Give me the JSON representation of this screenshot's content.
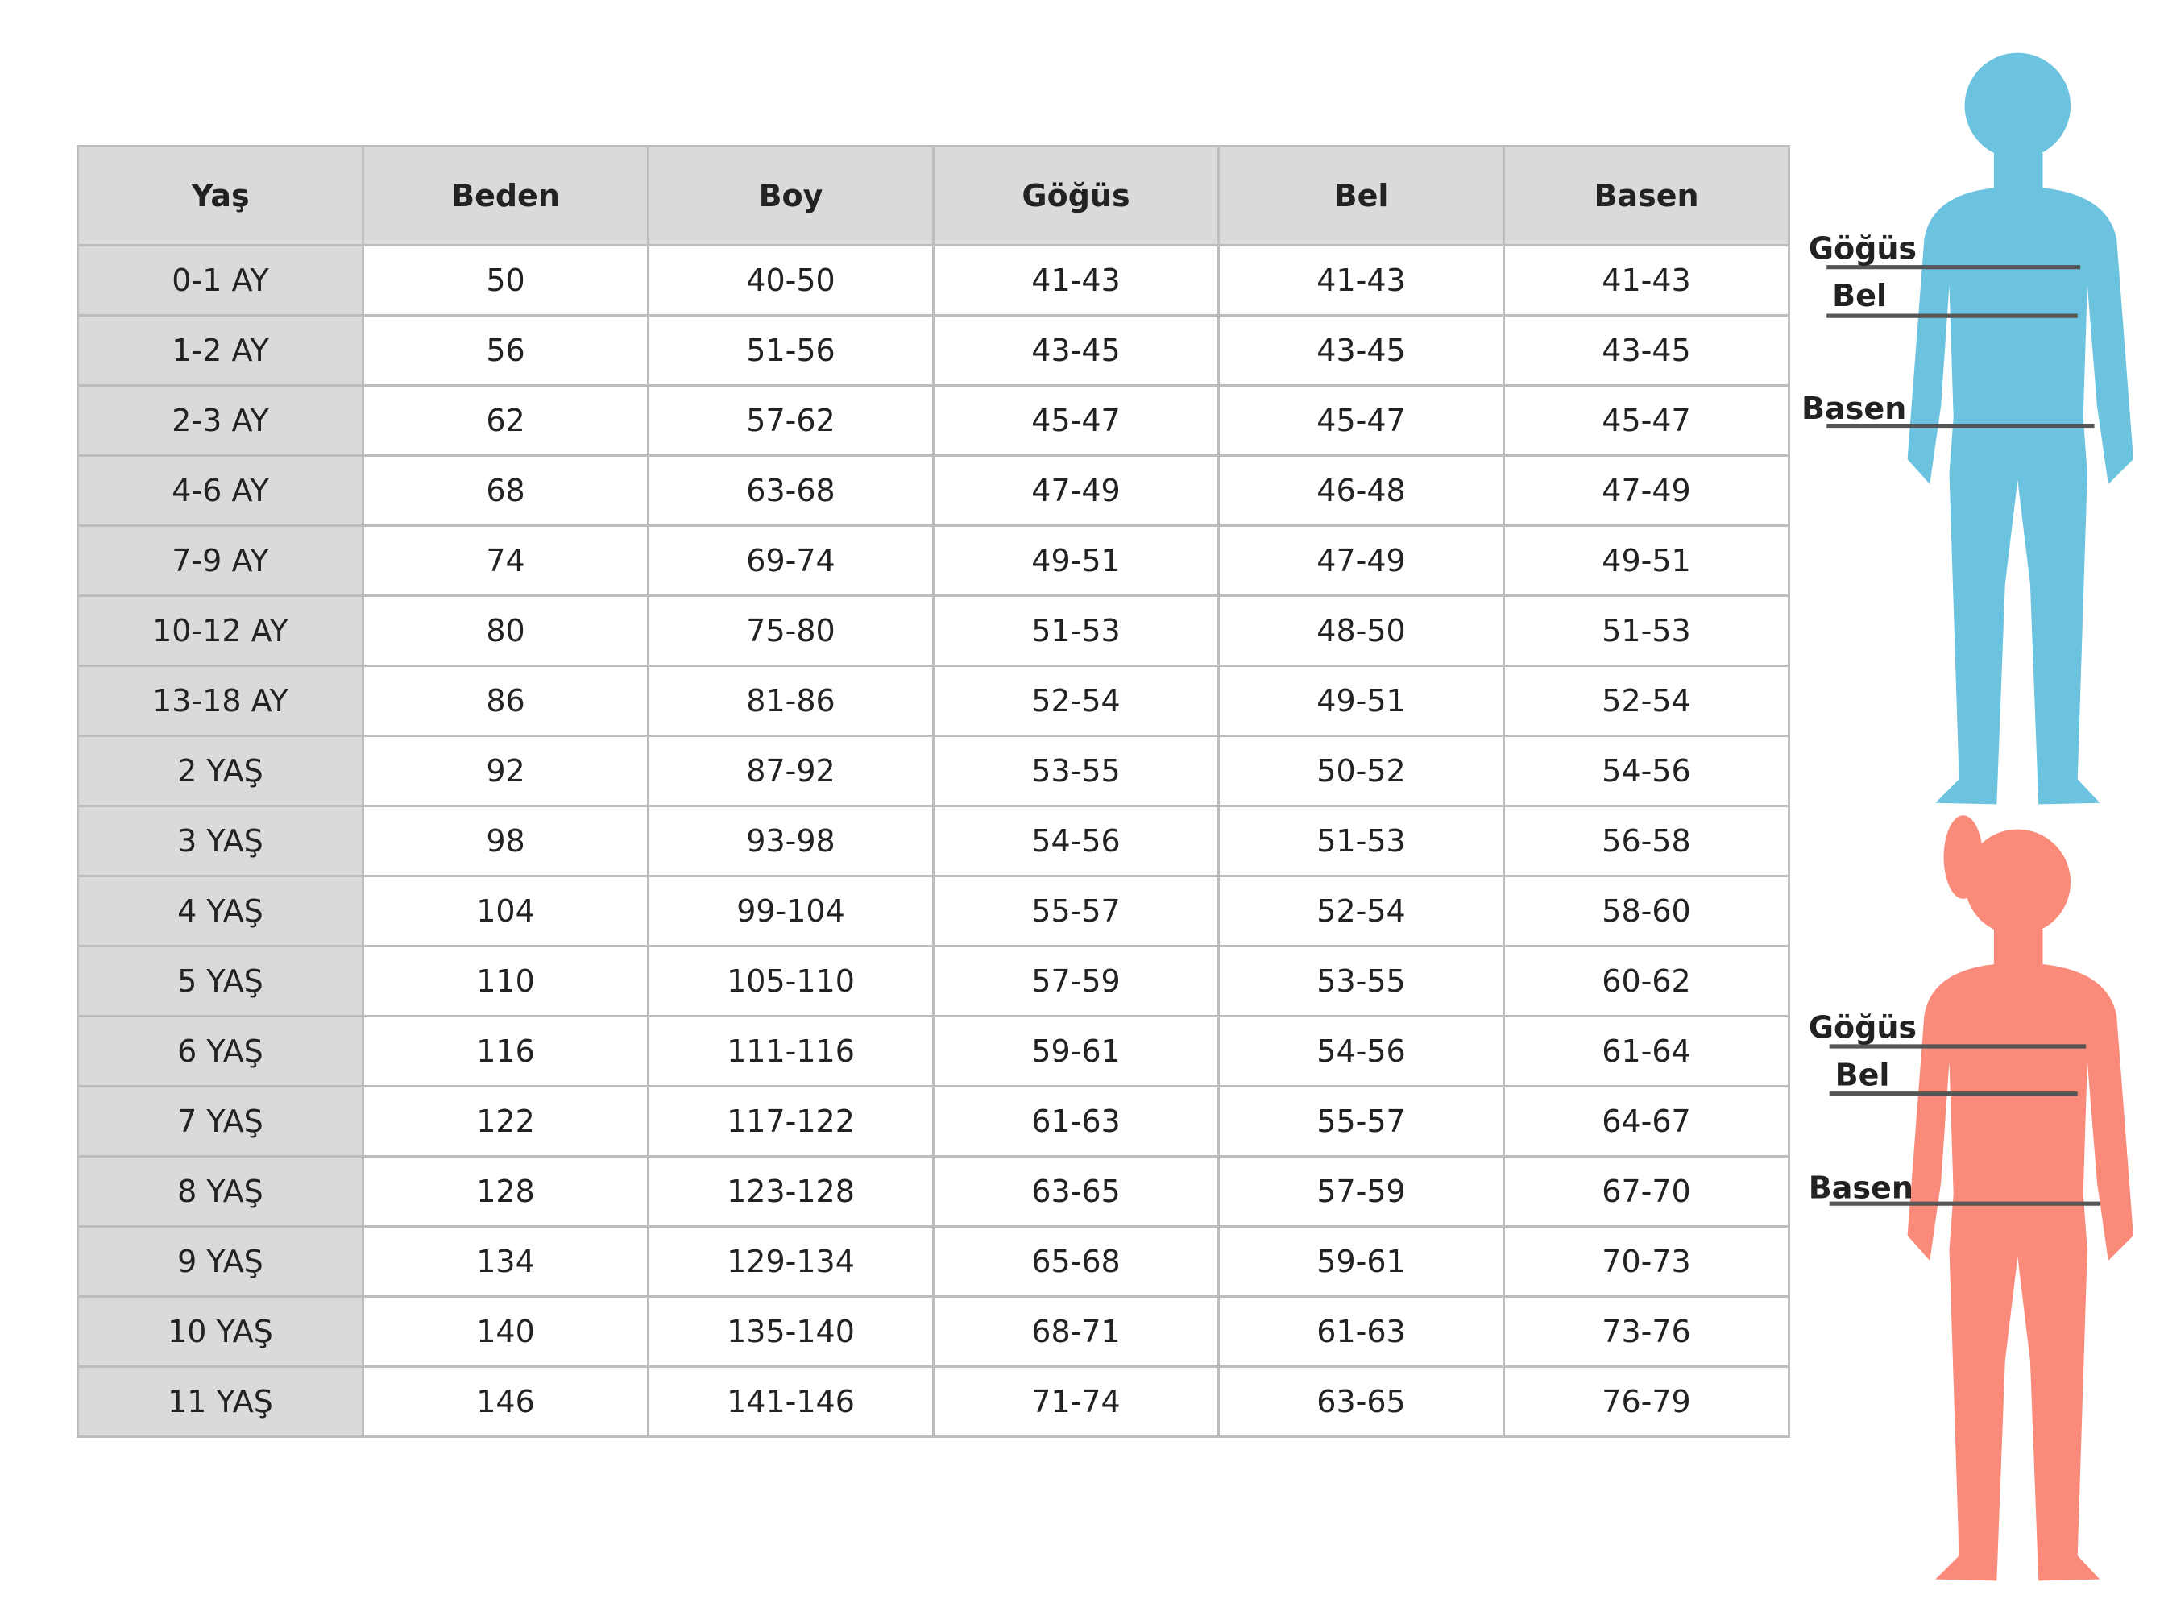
{
  "table": {
    "header": [
      "Yaş",
      "Beden",
      "Boy",
      "Göğüs",
      "Bel",
      "Basen"
    ],
    "rows": [
      [
        "0-1 AY",
        "50",
        "40-50",
        "41-43",
        "41-43",
        "41-43"
      ],
      [
        "1-2 AY",
        "56",
        "51-56",
        "43-45",
        "43-45",
        "43-45"
      ],
      [
        "2-3 AY",
        "62",
        "57-62",
        "45-47",
        "45-47",
        "45-47"
      ],
      [
        "4-6 AY",
        "68",
        "63-68",
        "47-49",
        "46-48",
        "47-49"
      ],
      [
        "7-9 AY",
        "74",
        "69-74",
        "49-51",
        "47-49",
        "49-51"
      ],
      [
        "10-12 AY",
        "80",
        "75-80",
        "51-53",
        "48-50",
        "51-53"
      ],
      [
        "13-18 AY",
        "86",
        "81-86",
        "52-54",
        "49-51",
        "52-54"
      ],
      [
        "2 YAŞ",
        "92",
        "87-92",
        "53-55",
        "50-52",
        "54-56"
      ],
      [
        "3 YAŞ",
        "98",
        "93-98",
        "54-56",
        "51-53",
        "56-58"
      ],
      [
        "4 YAŞ",
        "104",
        "99-104",
        "55-57",
        "52-54",
        "58-60"
      ],
      [
        "5 YAŞ",
        "110",
        "105-110",
        "57-59",
        "53-55",
        "60-62"
      ],
      [
        "6 YAŞ",
        "116",
        "111-116",
        "59-61",
        "54-56",
        "61-64"
      ],
      [
        "7 YAŞ",
        "122",
        "117-122",
        "61-63",
        "55-57",
        "64-67"
      ],
      [
        "8 YAŞ",
        "128",
        "123-128",
        "63-65",
        "57-59",
        "67-70"
      ],
      [
        "9 YAŞ",
        "134",
        "129-134",
        "65-68",
        "59-61",
        "70-73"
      ],
      [
        "10 YAŞ",
        "140",
        "135-140",
        "68-71",
        "61-63",
        "73-76"
      ],
      [
        "11 YAŞ",
        "146",
        "141-146",
        "71-74",
        "63-65",
        "76-79"
      ]
    ]
  },
  "figures": [
    {
      "labels": [
        "Göğüs",
        "Bel",
        "Basen"
      ]
    },
    {
      "labels": [
        "Göğüs",
        "Bel",
        "Basen"
      ]
    }
  ]
}
